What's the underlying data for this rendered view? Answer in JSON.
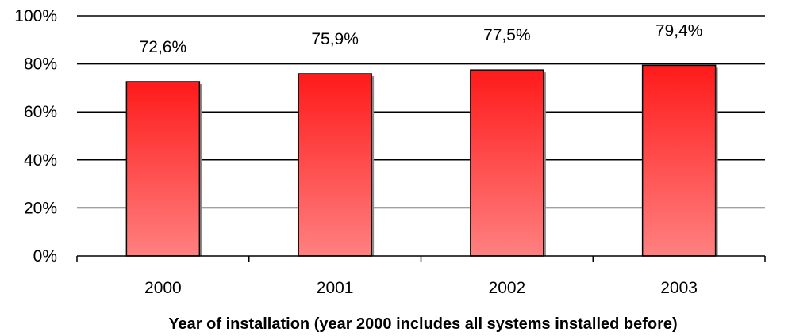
{
  "chart_data": {
    "type": "bar",
    "title": "",
    "xlabel": "Year of installation (year 2000 includes all systems installed before)",
    "ylabel": "",
    "categories": [
      "2000",
      "2001",
      "2002",
      "2003"
    ],
    "values": [
      72.6,
      75.9,
      77.5,
      79.4
    ],
    "value_labels": [
      "72,6%",
      "75,9%",
      "77,5%",
      "79,4%"
    ],
    "ylim": [
      0,
      100
    ],
    "yticks": [
      0,
      20,
      40,
      60,
      80,
      100
    ],
    "ytick_labels": [
      "0%",
      "20%",
      "40%",
      "60%",
      "80%",
      "100%"
    ],
    "grid": true,
    "legend": "none",
    "colors": {
      "bar_top": "#ff1a1a",
      "bar_bottom": "#ff8080",
      "bar_edge": "#000000",
      "grid": "#000000",
      "axis": "#000000"
    }
  }
}
